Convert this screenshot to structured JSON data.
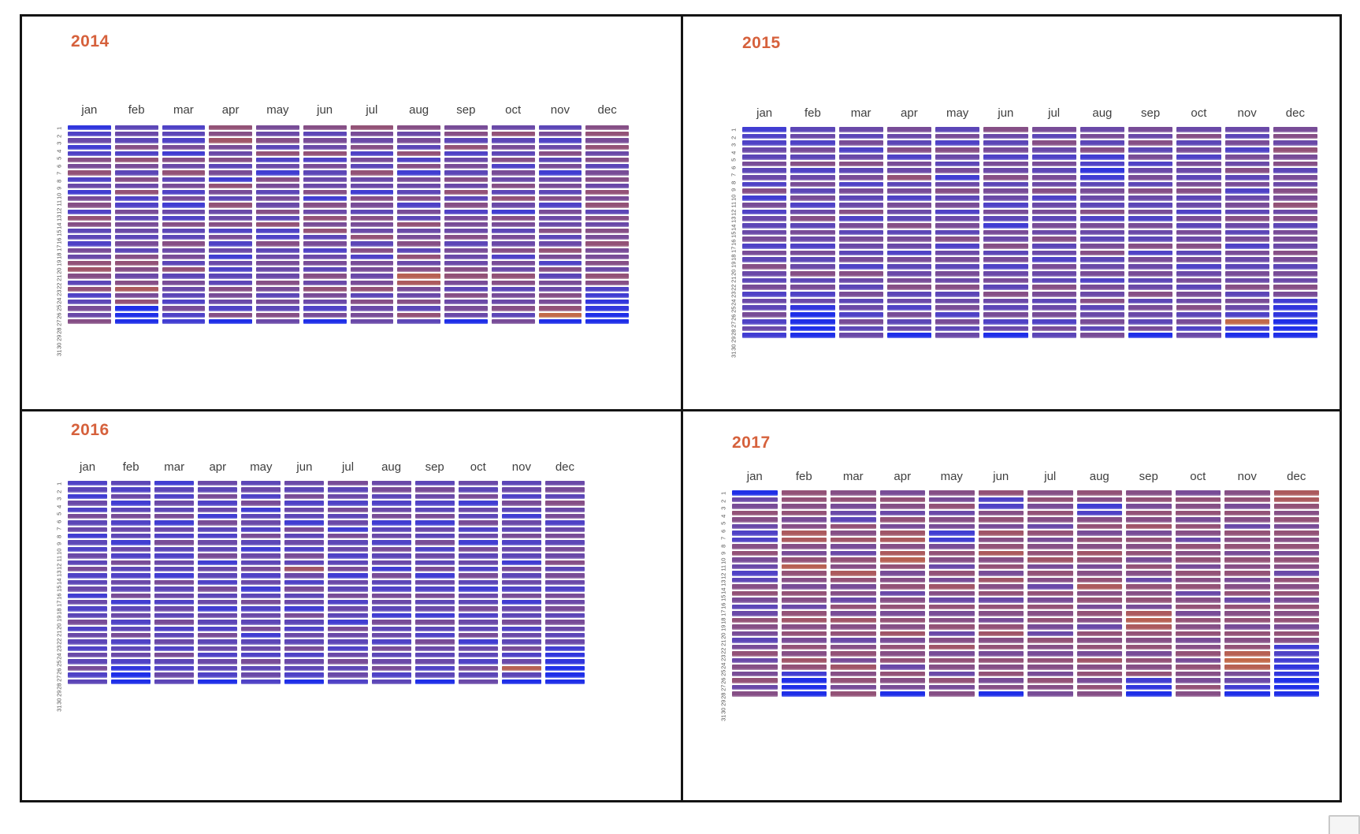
{
  "style": {
    "title_color": "#d6613c",
    "month_label_color": "#3f3f3f",
    "day_label_color": "#555555",
    "frame_color": "#141414",
    "colormap_stops": [
      "#1f2fe8",
      "#3a3ad8",
      "#4f42c6",
      "#6348b0",
      "#784c97",
      "#8d507e",
      "#a05568",
      "#b25d57",
      "#c26a4a",
      "#d3793f",
      "#e68a35"
    ]
  },
  "day_labels": [
    "1",
    "2",
    "3",
    "4",
    "5",
    "6",
    "7",
    "8",
    "9",
    "10",
    "11",
    "12",
    "13",
    "14",
    "15",
    "16",
    "17",
    "18",
    "19",
    "20",
    "21",
    "22",
    "23",
    "24",
    "25",
    "26",
    "27",
    "28",
    "29",
    "30",
    "31"
  ],
  "chart_data": [
    {
      "type": "heatmap",
      "title": "2014",
      "x_labels": [
        "jan",
        "feb",
        "mar",
        "apr",
        "may",
        "jun",
        "jul",
        "aug",
        "sep",
        "oct",
        "nov",
        "dec"
      ],
      "value_encoding": "one hex char per day (rows 1-31 top to bottom), 0=coldest/blue f=warmest/orange; non-existent calendar days = 0",
      "cells": [
        "1352376835267387443658974834657",
        "4547386475833646546478757a68000",
        "3436275846362537447564846543632",
        "8796574628648557363525344765370",
        "6574835276465748337456557646475",
        "7465836455727586846356475865360",
        "8657364855276476584736656847565",
        "75648372654736485674857ba657484",
        "6748356475847366574655786475650",
        "5846473657485276465736587465746",
        "46357462564736557458637465768c0",
        "7868574675868475768667587321100"
      ]
    },
    {
      "type": "heatmap",
      "title": "2015",
      "x_labels": [
        "jan",
        "feb",
        "mar",
        "apr",
        "may",
        "jun",
        "jul",
        "aug",
        "sep",
        "oct",
        "nov",
        "dec"
      ],
      "value_encoding": "one hex char per day (rows 1-31 top to bottom), 0=coldest/blue f=warmest/orange; non-existent calendar days = 0",
      "cells": [
        "2335464537263545636475463546352",
        "4536473564635746536457463510000",
        "5463574636457364654637546453645",
        "6547365846365474653645674536450",
        "4637546257463564735646574563645",
        "7546365746536426574635647546350",
        "6475364657356465745365476456364",
        "5647231246547365467456365745646",
        "6574635647546365473656457465460",
        "5746365467453646574635646574635",
        "5463657463564754636546574653c20",
        "6758674657685746657646576211000"
      ]
    },
    {
      "type": "heatmap",
      "title": "2016",
      "x_labels": [
        "jan",
        "feb",
        "mar",
        "apr",
        "may",
        "jun",
        "jul",
        "aug",
        "sep",
        "oct",
        "nov",
        "dec"
      ],
      "value_encoding": "one hex char per day (rows 1-31 top to bottom), 0=coldest/blue f=warmest/orange; non-existent calendar days = 0 (leap year: feb 29 real)",
      "cells": [
        "3425364524354634525346354354634",
        "4352463542536435462453463453100",
        "2435462536435426453546345364354",
        "5463526435462543645254364535430",
        "4536245364254635246354624536453",
        "5463542645364953645264354635430",
        "6453645264534625463542654356453",
        "5643562453645264365426453645634",
        "4653462546354625364526436545340",
        "5462546352645364254635462543645",
        "4536425463542645362546354635b40",
        "5647563564657465365646545211000"
      ]
    },
    {
      "type": "heatmap",
      "title": "2017",
      "x_labels": [
        "jan",
        "feb",
        "mar",
        "apr",
        "may",
        "jun",
        "jul",
        "aug",
        "sep",
        "oct",
        "nov",
        "dec"
      ],
      "value_encoding": "one hex char per day (rows 1-31 top to bottom), 0=coldest/blue f=warmest/orange; non-existent calendar days = 0",
      "cells": [
        "0568753378653478645876468576857",
        "887867aa768b8768758978687982000",
        "786548796587a867586978578697868",
        "6875869a7ab86785786879687858760",
        "7685762268758697586785796875867",
        "833786978a786978587689786878670",
        "7868758678968758687865876876876",
        "87237868798678a7868758786978687",
        "786879687868758786aba8786878210",
        "6878687587868785786878678687687",
        "786875878687867858786878bcb6520",
        "aa87868786875878687868723211000"
      ]
    }
  ]
}
